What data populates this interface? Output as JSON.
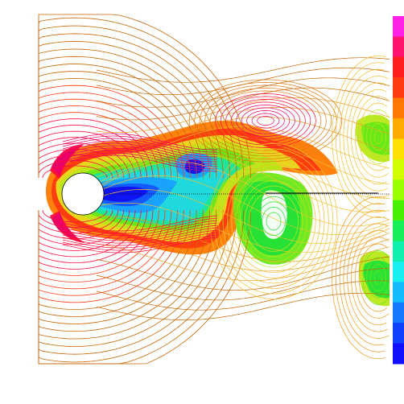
{
  "figure": {
    "kind": "flow-past-cylinder contour plot",
    "background": "#ffffff",
    "contour_palette": [
      "#c86400",
      "#e07810",
      "#ee9a20",
      "#f2c030",
      "#e6e020",
      "#b8e818",
      "#66e818",
      "#24e038",
      "#18e6a0",
      "#20d8e0",
      "#1aa0ff",
      "#1456ff",
      "#1010f0"
    ],
    "hot_palette": [
      "#ff7a00",
      "#ff3a10",
      "#ff0a3c",
      "#e8006a",
      "#ff2a8a"
    ],
    "colorbar": {
      "colors_top_to_bottom": [
        "#ff20e8",
        "#ff1470",
        "#ff1e1e",
        "#ff3c10",
        "#ff7800",
        "#ffaa00",
        "#ffe000",
        "#d4ff00",
        "#9cff00",
        "#48f000",
        "#18f05a",
        "#10f0b0",
        "#18f0f0",
        "#14bcff",
        "#1478ff",
        "#1040ff",
        "#1010ff"
      ]
    },
    "wake_line_color": "#000000",
    "cylinder_fill": "#ffffff"
  }
}
